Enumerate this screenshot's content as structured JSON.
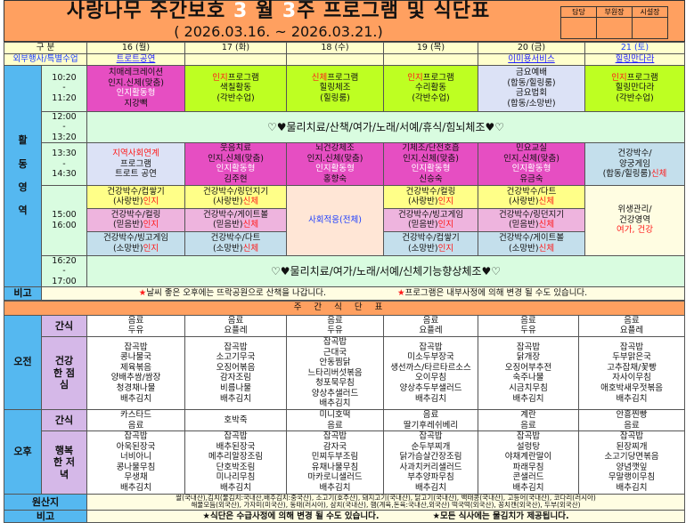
{
  "header": {
    "title_pre": "사랑나무 주간보호 ",
    "month": "3",
    "title_mid": " 월 ",
    "week": "3",
    "title_post": "주 프로그램 및 식단표",
    "subtitle": "( 2026.03.16. ~ 2026.03.21.)",
    "approval": [
      "담당",
      "부원장",
      "시설장"
    ]
  },
  "columns": {
    "label": "구 분",
    "days": [
      "16 (월)",
      "17 (화)",
      "18 (수)",
      "19 (목)",
      "20 (금)",
      "21 (토)"
    ]
  },
  "external": {
    "label": "외부행사/특별수업",
    "values": [
      "트로트공연",
      "",
      "",
      "",
      "이미용서비스",
      "힐링만다라"
    ]
  },
  "activity": {
    "section_label": "활동영역",
    "rows": [
      {
        "time": [
          "10:20",
          "11:20"
        ],
        "cells": [
          {
            "bg": "mag",
            "lines": [
              [
                [
                  "치매레크레이션",
                  "black"
                ]
              ],
              [
                [
                  "인지.신체(맞춤)",
                  "black"
                ]
              ],
              [
                [
                  "인지활동형",
                  "white"
                ]
              ],
              [
                [
                  "지강빽",
                  "black"
                ]
              ]
            ]
          },
          {
            "bg": "lime",
            "lines": [
              [
                [
                  "인지",
                  "red"
                ],
                [
                  "프로그램",
                  "black"
                ]
              ],
              [
                [
                  "색칠활동",
                  "black"
                ]
              ],
              [
                [
                  "(각반수업)",
                  "black"
                ]
              ]
            ]
          },
          {
            "bg": "lime",
            "lines": [
              [
                [
                  "신체",
                  "red"
                ],
                [
                  "프로그램",
                  "black"
                ]
              ],
              [
                [
                  "힐링체조",
                  "black"
                ]
              ],
              [
                [
                  "(힐링룸)",
                  "black"
                ]
              ]
            ]
          },
          {
            "bg": "lime",
            "lines": [
              [
                [
                  "인지",
                  "red"
                ],
                [
                  "프로그램",
                  "black"
                ]
              ],
              [
                [
                  "수리활동",
                  "black"
                ]
              ],
              [
                [
                  "(각반수업)",
                  "black"
                ]
              ]
            ]
          },
          {
            "bg": "lav",
            "lines": [
              [
                [
                  "금요예배",
                  "black"
                ]
              ],
              [
                [
                  "(합동/힐링룸)",
                  "black"
                ]
              ],
              [
                [
                  "금요법회",
                  "black"
                ]
              ],
              [
                [
                  "(합동/소망반)",
                  "black"
                ]
              ]
            ]
          },
          {
            "bg": "lime",
            "lines": [
              [
                [
                  "인지",
                  "red"
                ],
                [
                  "프로그램",
                  "black"
                ]
              ],
              [
                [
                  "힐링만다라",
                  "black"
                ]
              ],
              [
                [
                  "(각반수업)",
                  "black"
                ]
              ]
            ]
          }
        ]
      },
      {
        "time": [
          "12:00",
          "13:20"
        ],
        "span": "♡♥물리치료/산책/여가/노래/서예/휴식/힘뇌체조♥♡"
      },
      {
        "time": [
          "13:30",
          "14:30"
        ],
        "cells": [
          {
            "bg": "lav",
            "lines": [
              [
                [
                  "지역사회연계",
                  "red"
                ]
              ],
              [
                [
                  "프로그램",
                  "black"
                ]
              ],
              [
                [
                  "트로트 공연",
                  "black"
                ]
              ]
            ]
          },
          {
            "bg": "mag",
            "lines": [
              [
                [
                  "웃음치료",
                  "black"
                ]
              ],
              [
                [
                  "인지.신체(맞춤)",
                  "black"
                ]
              ],
              [
                [
                  "인지활동형",
                  "white"
                ]
              ],
              [
                [
                  "김주현",
                  "black"
                ]
              ]
            ]
          },
          {
            "bg": "mag",
            "lines": [
              [
                [
                  "뇌건강체조",
                  "black"
                ]
              ],
              [
                [
                  "인지.신체(맞춤)",
                  "black"
                ]
              ],
              [
                [
                  "인지활동형",
                  "white"
                ]
              ],
              [
                [
                  "홍향숙",
                  "black"
                ]
              ]
            ]
          },
          {
            "bg": "mag",
            "lines": [
              [
                [
                  "기체조/단전호흡",
                  "black"
                ]
              ],
              [
                [
                  "인지.신체(맞춤)",
                  "black"
                ]
              ],
              [
                [
                  "인지활동형",
                  "white"
                ]
              ],
              [
                [
                  "신승숙",
                  "black"
                ]
              ]
            ]
          },
          {
            "bg": "mag",
            "lines": [
              [
                [
                  "민요교실",
                  "black"
                ]
              ],
              [
                [
                  "인지.신체(맞춤)",
                  "black"
                ]
              ],
              [
                [
                  "인지활동형",
                  "white"
                ]
              ],
              [
                [
                  "유금숙",
                  "black"
                ]
              ]
            ]
          },
          {
            "bg": "lblue",
            "lines": [
              [
                [
                  "건강박수/",
                  "black"
                ]
              ],
              [
                [
                  "양궁게임",
                  "black"
                ]
              ],
              [
                [
                  "(합동/힐링룸)",
                  "black"
                ],
                [
                  "신체",
                  "red"
                ]
              ]
            ]
          }
        ]
      },
      {
        "time": [
          "15:00",
          "16:00"
        ],
        "sub": [
          {
            "bg": "yel",
            "cells": [
              [
                [
                  [
                    "건강박수/컵쌓기",
                    "black"
                  ]
                ],
                [
                  [
                    "(사랑반)",
                    "black"
                  ],
                  [
                    "인지",
                    "red"
                  ]
                ]
              ],
              [
                [
                  [
                    "건강박수/링던지기",
                    "black"
                  ]
                ],
                [
                  [
                    "(사랑반)",
                    "black"
                  ],
                  [
                    "신체",
                    "red"
                  ]
                ]
              ],
              null,
              [
                [
                  [
                    "건강박수/컬링",
                    "black"
                  ]
                ],
                [
                  [
                    "(사랑반)",
                    "black"
                  ],
                  [
                    "인지",
                    "red"
                  ]
                ]
              ],
              [
                [
                  [
                    "건강박수/다트",
                    "black"
                  ]
                ],
                [
                  [
                    "(사랑반)",
                    "black"
                  ],
                  [
                    "신체",
                    "red"
                  ]
                ]
              ],
              null
            ]
          },
          {
            "bg": "pink",
            "cells": [
              [
                [
                  [
                    "건강박수/컬링",
                    "black"
                  ]
                ],
                [
                  [
                    "(믿음반)",
                    "black"
                  ],
                  [
                    "인지",
                    "red"
                  ]
                ]
              ],
              [
                [
                  [
                    "건강박수/게이트볼",
                    "black"
                  ]
                ],
                [
                  [
                    "(믿음반)",
                    "black"
                  ],
                  [
                    "신체",
                    "red"
                  ]
                ]
              ],
              null,
              [
                [
                  [
                    "건강박수/빙고게임",
                    "black"
                  ]
                ],
                [
                  [
                    "(믿음반)",
                    "black"
                  ],
                  [
                    "인지",
                    "red"
                  ]
                ]
              ],
              [
                [
                  [
                    "건강박수/링던지기",
                    "black"
                  ]
                ],
                [
                  [
                    "(믿음반)",
                    "black"
                  ],
                  [
                    "신체",
                    "red"
                  ]
                ]
              ],
              null
            ]
          },
          {
            "bg": "lblue",
            "cells": [
              [
                [
                  [
                    "건강박수/빙고게임",
                    "black"
                  ]
                ],
                [
                  [
                    "(소망반)",
                    "black"
                  ],
                  [
                    "인지",
                    "red"
                  ]
                ]
              ],
              [
                [
                  [
                    "건강박수/다트",
                    "black"
                  ]
                ],
                [
                  [
                    "(소망반)",
                    "black"
                  ],
                  [
                    "신체",
                    "red"
                  ]
                ]
              ],
              null,
              [
                [
                  [
                    "건강박수/컵쌓기",
                    "black"
                  ]
                ],
                [
                  [
                    "(소망반)",
                    "black"
                  ],
                  [
                    "인지",
                    "red"
                  ]
                ]
              ],
              [
                [
                  [
                    "건강박수/게이트볼",
                    "black"
                  ]
                ],
                [
                  [
                    "(소망반)",
                    "black"
                  ],
                  [
                    "신체",
                    "red"
                  ]
                ]
              ],
              null
            ]
          }
        ],
        "wed": {
          "bg": "peach",
          "lines": [
            [
              [
                "사회적응(전체)",
                "blue"
              ]
            ]
          ]
        },
        "sat": {
          "bg": "cream",
          "lines": [
            [
              [
                "위생관리/",
                "black"
              ]
            ],
            [
              [
                "건강영역",
                "black"
              ]
            ],
            [
              [
                "여가, 건강",
                "red"
              ]
            ]
          ]
        }
      },
      {
        "time": [
          "16:20",
          "17:00"
        ],
        "span": "♡♥물리치료/여가/노래/서예/신체기능향상체조♥♡"
      }
    ]
  },
  "note1": {
    "label": "비고",
    "star": "★",
    "text1": "날씨 좋은 오후에는 뜨락공원으로 산책을 나갑니다.",
    "text2": "프로그램은 내부사정에 의해 변경 될 수도 있습니다."
  },
  "menu": {
    "title": "주간식단표",
    "am_label": "오전",
    "pm_label": "오후",
    "snack_label": "간식",
    "lunch_label": "건강한 점심",
    "dinner_label": "행복한 저녁",
    "am_snack": [
      [
        "음료",
        "두유"
      ],
      [
        "음료",
        "요플레"
      ],
      [
        "음료",
        "두유"
      ],
      [
        "음료",
        "요플레"
      ],
      [
        "음료",
        "두유"
      ],
      [
        "음료",
        "요플레"
      ]
    ],
    "lunch": [
      [
        "잡곡밥",
        "콩나물국",
        "제육볶음",
        "양배추쌈/쌈장",
        "청경채나물",
        "배추김치"
      ],
      [
        "잡곡밥",
        "소고기무국",
        "오징어볶음",
        "감자조림",
        "비름나물",
        "배추김치"
      ],
      [
        "잡곡밥",
        "근대국",
        "안동찜닭",
        "느타리버섯볶음",
        "청포묵무침",
        "양상추샐러드",
        "배추김치"
      ],
      [
        "잡곡밥",
        "미소두부장국",
        "생선까스/타르타르소스",
        "오이무침",
        "양상추두부샐러드",
        "배추김치"
      ],
      [
        "잡곡밥",
        "닭개장",
        "오징어부추전",
        "숙주나물",
        "시금치무침",
        "배추김치"
      ],
      [
        "잡곡밥",
        "두부맑은국",
        "고추잡채/꽃빵",
        "자사이무침",
        "애호박새우젓볶음",
        "배추김치"
      ]
    ],
    "pm_snack": [
      [
        "카스타드",
        "음료"
      ],
      [
        "호박죽"
      ],
      [
        "미니호떡",
        "음료"
      ],
      [
        "음료",
        "딸기후레쉬베리"
      ],
      [
        "계란",
        "음료"
      ],
      [
        "안흥찐빵",
        "음료"
      ]
    ],
    "dinner": [
      [
        "잡곡밥",
        "아욱된장국",
        "너비아니",
        "콩나물무침",
        "무생채",
        "배추김치"
      ],
      [
        "잡곡밥",
        "배추된장국",
        "메추리알장조림",
        "단호박조림",
        "미나리무침",
        "배추김치"
      ],
      [
        "잡곡밥",
        "감자국",
        "민찌두부조림",
        "유채나물무침",
        "마카로니샐러드",
        "배추김치"
      ],
      [
        "잡곡밥",
        "순두부찌개",
        "닭가슴살간장조림",
        "사과치커리샐러드",
        "부추양파무침",
        "배추김치"
      ],
      [
        "잡곡밥",
        "설렁탕",
        "야채계란말이",
        "파래무침",
        "콘샐러드",
        "배추김치"
      ],
      [
        "잡곡밥",
        "된장찌개",
        "소고기당면볶음",
        "양념깻잎",
        "무말랭이무침",
        "배추김치"
      ]
    ]
  },
  "origin": {
    "label": "원산지",
    "line1": "쌀(국내산),김치(물김치:국내산,배추김치:중국산), 소고기(호주산), 돼지고기(국내산), 닭고기(국내산), 백태콩(국내산), 고등어(국내산), 코다리(러시아)",
    "line2": "해물모듬(외국산), 가자미(미국산), 동태(러시아), 삼치(국내산), 햄(계육,돈육:국내산,외국산) 떡국떡(외국산), 꽁치캔(외국산), 두부(외국산)"
  },
  "note2": {
    "label": "비고",
    "star": "★",
    "text1": "식단은 수급사정에 의해 변경 될 수도 있습니다.",
    "text2": "모든 식사에는 물김치가 제공됩니다."
  }
}
